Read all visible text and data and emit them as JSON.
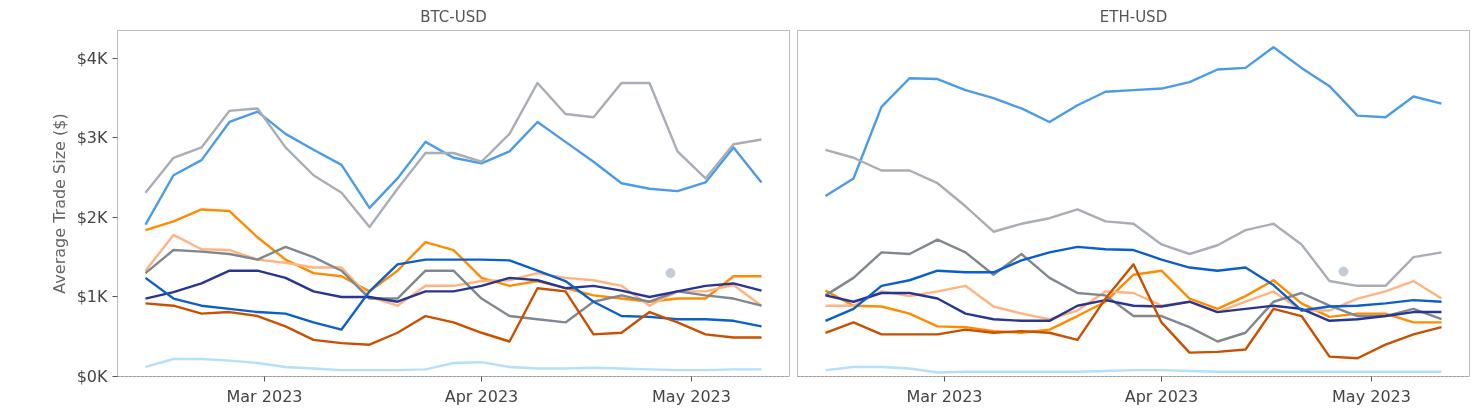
{
  "chart_data": [
    {
      "type": "line",
      "title": "BTC-USD",
      "ylabel": "Average Trade Size ($)",
      "grid": false,
      "x": [
        "2023-02-12",
        "2023-02-16",
        "2023-02-20",
        "2023-02-24",
        "2023-02-28",
        "2023-03-04",
        "2023-03-08",
        "2023-03-12",
        "2023-03-16",
        "2023-03-20",
        "2023-03-24",
        "2023-03-28",
        "2023-04-01",
        "2023-04-05",
        "2023-04-09",
        "2023-04-13",
        "2023-04-17",
        "2023-04-21",
        "2023-04-25",
        "2023-04-29",
        "2023-05-03",
        "2023-05-07",
        "2023-05-11"
      ],
      "xlim": [
        "2023-02-08",
        "2023-05-15"
      ],
      "xticks": [
        {
          "value": "2023-03-01",
          "label": "Mar 2023"
        },
        {
          "value": "2023-04-01",
          "label": "Apr 2023"
        },
        {
          "value": "2023-05-01",
          "label": "May 2023"
        }
      ],
      "ylim": [
        0,
        4350
      ],
      "yticks": [
        {
          "value": 0,
          "label": "$0K"
        },
        {
          "value": 1000,
          "label": "$1K"
        },
        {
          "value": 2000,
          "label": "$2K"
        },
        {
          "value": 3000,
          "label": "$3K"
        },
        {
          "value": 4000,
          "label": "$4K"
        }
      ],
      "series": [
        {
          "color": "#4a9be8",
          "values": [
            1910,
            2530,
            2720,
            3200,
            3330,
            3050,
            2850,
            2660,
            2120,
            2490,
            2950,
            2750,
            2680,
            2830,
            3200,
            2950,
            2700,
            2430,
            2360,
            2330,
            2440,
            2880,
            2440
          ]
        },
        {
          "color": "#a9adb6",
          "values": [
            2310,
            2750,
            2880,
            3340,
            3370,
            2880,
            2530,
            2310,
            1880,
            2360,
            2810,
            2810,
            2700,
            3050,
            3690,
            3300,
            3260,
            3690,
            3690,
            2830,
            2490,
            2920,
            2980
          ]
        },
        {
          "color": "#ff8c00",
          "values": [
            1840,
            1950,
            2100,
            2080,
            1750,
            1470,
            1300,
            1260,
            1070,
            1330,
            1690,
            1590,
            1240,
            1140,
            1200,
            1110,
            1020,
            980,
            940,
            980,
            980,
            1260,
            1260
          ]
        },
        {
          "color": "#ffb480",
          "values": [
            1330,
            1780,
            1600,
            1590,
            1470,
            1430,
            1370,
            1370,
            1000,
            890,
            1140,
            1140,
            1200,
            1210,
            1300,
            1240,
            1210,
            1140,
            890,
            1070,
            1070,
            1150,
            890
          ]
        },
        {
          "color": "#7f878f",
          "values": [
            1300,
            1590,
            1570,
            1540,
            1470,
            1630,
            1500,
            1330,
            980,
            980,
            1330,
            1330,
            980,
            760,
            720,
            680,
            940,
            1020,
            940,
            1070,
            1020,
            980,
            890
          ]
        },
        {
          "color": "#283593",
          "values": [
            980,
            1060,
            1170,
            1330,
            1330,
            1240,
            1070,
            1000,
            1000,
            940,
            1070,
            1070,
            1140,
            1240,
            1210,
            1110,
            1140,
            1080,
            1000,
            1070,
            1140,
            1170,
            1080
          ]
        },
        {
          "color": "#0a5fc9",
          "values": [
            1240,
            980,
            890,
            850,
            810,
            790,
            680,
            590,
            1070,
            1410,
            1470,
            1470,
            1470,
            1460,
            1330,
            1200,
            940,
            760,
            750,
            720,
            720,
            700,
            630
          ]
        },
        {
          "color": "#c85000",
          "values": [
            920,
            890,
            790,
            810,
            760,
            630,
            460,
            420,
            400,
            550,
            760,
            680,
            550,
            440,
            1110,
            1070,
            530,
            550,
            810,
            680,
            530,
            490,
            490
          ]
        },
        {
          "color": "#b3e0ff",
          "values": [
            120,
            220,
            220,
            200,
            170,
            120,
            100,
            80,
            80,
            80,
            90,
            170,
            180,
            120,
            100,
            100,
            110,
            100,
            90,
            80,
            80,
            90,
            90
          ]
        },
        {
          "type": "scatter",
          "marker": "circle",
          "color": "#c3cdd8",
          "x": [
            "2023-04-28"
          ],
          "values": [
            1300
          ]
        }
      ]
    },
    {
      "type": "line",
      "title": "ETH-USD",
      "grid": false,
      "tick_labels": "x",
      "x": [
        "2023-02-12",
        "2023-02-16",
        "2023-02-20",
        "2023-02-24",
        "2023-02-28",
        "2023-03-04",
        "2023-03-08",
        "2023-03-12",
        "2023-03-16",
        "2023-03-20",
        "2023-03-24",
        "2023-03-28",
        "2023-04-01",
        "2023-04-05",
        "2023-04-09",
        "2023-04-13",
        "2023-04-17",
        "2023-04-21",
        "2023-04-25",
        "2023-04-29",
        "2023-05-03",
        "2023-05-07",
        "2023-05-11"
      ],
      "xlim": [
        "2023-02-08",
        "2023-05-15"
      ],
      "xticks": [
        {
          "value": "2023-03-01",
          "label": "Mar 2023"
        },
        {
          "value": "2023-04-01",
          "label": "Apr 2023"
        },
        {
          "value": "2023-05-01",
          "label": "May 2023"
        }
      ],
      "ylim": [
        0,
        4350
      ],
      "series": [
        {
          "color": "#4a9be8",
          "values": [
            2270,
            2490,
            3390,
            3750,
            3740,
            3600,
            3500,
            3370,
            3200,
            3410,
            3580,
            3600,
            3620,
            3700,
            3860,
            3880,
            4140,
            3880,
            3650,
            3280,
            3260,
            3520,
            3430
          ]
        },
        {
          "color": "#a9adb6",
          "values": [
            2850,
            2750,
            2590,
            2590,
            2430,
            2140,
            1820,
            1920,
            1990,
            2100,
            1950,
            1920,
            1660,
            1540,
            1650,
            1840,
            1920,
            1660,
            1200,
            1140,
            1140,
            1500,
            1560
          ]
        },
        {
          "color": "#ff8c00",
          "values": [
            1080,
            890,
            880,
            790,
            630,
            620,
            570,
            550,
            590,
            760,
            940,
            1280,
            1330,
            980,
            850,
            1010,
            1210,
            920,
            750,
            790,
            790,
            680,
            680
          ]
        },
        {
          "color": "#ffb480",
          "values": [
            890,
            890,
            1070,
            1010,
            1070,
            1140,
            880,
            790,
            720,
            830,
            1070,
            1050,
            890,
            940,
            810,
            940,
            1070,
            830,
            830,
            980,
            1070,
            1200,
            980
          ]
        },
        {
          "color": "#7f878f",
          "values": [
            1020,
            1240,
            1560,
            1540,
            1720,
            1560,
            1280,
            1540,
            1240,
            1050,
            1020,
            760,
            760,
            620,
            440,
            550,
            940,
            1050,
            890,
            760,
            760,
            850,
            720
          ]
        },
        {
          "color": "#283593",
          "values": [
            1020,
            940,
            1050,
            1050,
            980,
            790,
            720,
            700,
            700,
            890,
            960,
            890,
            880,
            940,
            810,
            850,
            890,
            850,
            700,
            720,
            760,
            810,
            810
          ]
        },
        {
          "color": "#0a5fc9",
          "values": [
            700,
            850,
            1140,
            1210,
            1330,
            1310,
            1310,
            1460,
            1560,
            1630,
            1600,
            1590,
            1470,
            1370,
            1330,
            1370,
            1150,
            830,
            880,
            890,
            920,
            960,
            940
          ]
        },
        {
          "color": "#c85000",
          "values": [
            550,
            680,
            530,
            530,
            530,
            590,
            550,
            570,
            550,
            460,
            980,
            1410,
            680,
            300,
            310,
            340,
            850,
            760,
            250,
            230,
            400,
            530,
            620
          ]
        },
        {
          "color": "#b3e0ff",
          "values": [
            80,
            120,
            120,
            100,
            50,
            60,
            60,
            60,
            60,
            60,
            70,
            80,
            80,
            70,
            60,
            60,
            60,
            60,
            60,
            60,
            60,
            60,
            60
          ]
        },
        {
          "type": "scatter",
          "marker": "circle",
          "color": "#c3cdd8",
          "x": [
            "2023-04-27"
          ],
          "values": [
            1320
          ]
        }
      ]
    }
  ]
}
